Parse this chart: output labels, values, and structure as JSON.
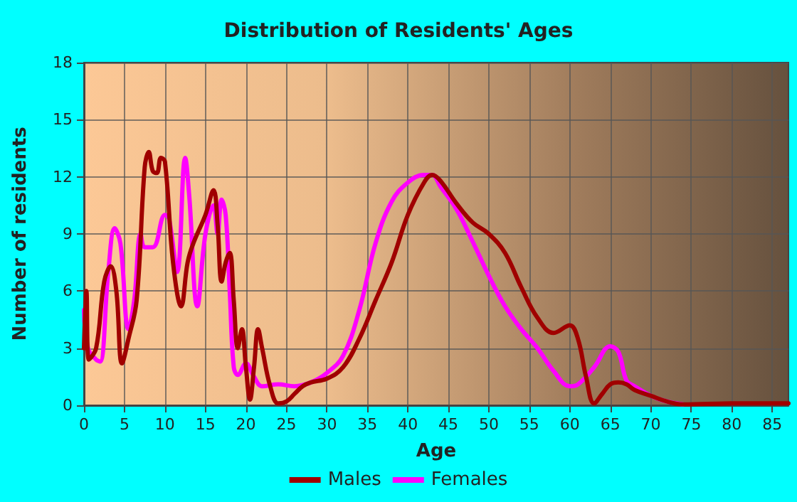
{
  "chart_data": {
    "type": "line",
    "title": "Distribution of Residents' Ages",
    "xlabel": "Age",
    "ylabel": "Number of residents",
    "xlim": [
      0,
      87
    ],
    "xticks": [
      0,
      5,
      10,
      15,
      20,
      25,
      30,
      35,
      40,
      45,
      50,
      55,
      60,
      65,
      70,
      75,
      80,
      85
    ],
    "ylim": [
      0,
      18
    ],
    "yticks": [
      0,
      3,
      6,
      9,
      12,
      15,
      18
    ],
    "grid": true,
    "legend": "bottom",
    "marker": "none",
    "line_style": "solid",
    "series": [
      {
        "name": "Males",
        "color": "#a00000",
        "x": [
          0,
          0.3,
          0.6,
          1.5,
          2.5,
          3.3,
          4,
          4.7,
          5.5,
          6.5,
          7.5,
          8,
          8.5,
          9,
          9.5,
          10,
          11,
          12,
          12.8,
          13.5,
          15,
          16,
          16.5,
          17,
          17.5,
          18,
          18.5,
          19,
          19.5,
          20,
          20.5,
          21,
          21.5,
          22,
          23,
          24,
          25,
          26,
          27,
          28,
          30,
          32,
          34,
          36,
          38,
          40,
          42,
          43,
          44,
          46,
          48,
          50,
          52,
          54,
          56,
          58,
          60,
          61,
          62,
          63,
          64,
          65,
          66,
          67,
          68,
          70,
          72,
          74,
          80,
          87
        ],
        "values": [
          3,
          6,
          2.4,
          3,
          6.5,
          7.3,
          6,
          2.2,
          3.5,
          5.5,
          12.5,
          13.3,
          12.3,
          12.2,
          13,
          12.8,
          7.5,
          5.2,
          7.5,
          8.5,
          10,
          11.3,
          9.5,
          6.5,
          7.5,
          8,
          5.5,
          3,
          4,
          2,
          0.3,
          2,
          4,
          3,
          1,
          0.1,
          0.2,
          0.6,
          1,
          1.2,
          1.4,
          2,
          3.5,
          5.5,
          7.5,
          10,
          11.7,
          12.1,
          11.8,
          10.6,
          9.6,
          9,
          8,
          6.2,
          4.6,
          3.8,
          4.2,
          3.5,
          1.5,
          0.1,
          0.6,
          1.1,
          1.2,
          1.1,
          0.8,
          0.5,
          0.2,
          0.05,
          0.1,
          0.1
        ]
      },
      {
        "name": "Females",
        "color": "#ff00ff",
        "x": [
          0,
          0.5,
          1.5,
          2,
          3,
          3.8,
          4.5,
          5.5,
          6.2,
          7,
          7.5,
          8.5,
          10,
          10.5,
          11.5,
          12.5,
          13,
          14,
          15,
          16,
          16.5,
          17,
          17.5,
          18,
          18.5,
          19,
          20,
          21,
          22,
          24,
          26,
          28,
          30,
          32,
          34,
          36,
          38,
          40,
          42,
          43,
          44,
          46,
          48,
          50,
          52,
          54,
          56,
          58,
          60,
          61,
          63,
          65,
          66,
          67,
          68,
          70,
          72,
          74
        ],
        "values": [
          5,
          3,
          2.4,
          2.3,
          7,
          9.3,
          8.5,
          4,
          5.5,
          9,
          8.3,
          8.3,
          10,
          9.8,
          7,
          13,
          11,
          5.2,
          9,
          10.5,
          9,
          10.8,
          10,
          6,
          2,
          1.6,
          2.2,
          1.5,
          1,
          1.1,
          1,
          1.2,
          1.7,
          2.6,
          5,
          8.5,
          10.7,
          11.7,
          12.1,
          12.1,
          11.5,
          10.3,
          8.6,
          6.8,
          5.2,
          4,
          3,
          1.8,
          1,
          1.1,
          2,
          3.1,
          2.8,
          1.3,
          1,
          0.5,
          0.2,
          0.05
        ]
      }
    ]
  }
}
